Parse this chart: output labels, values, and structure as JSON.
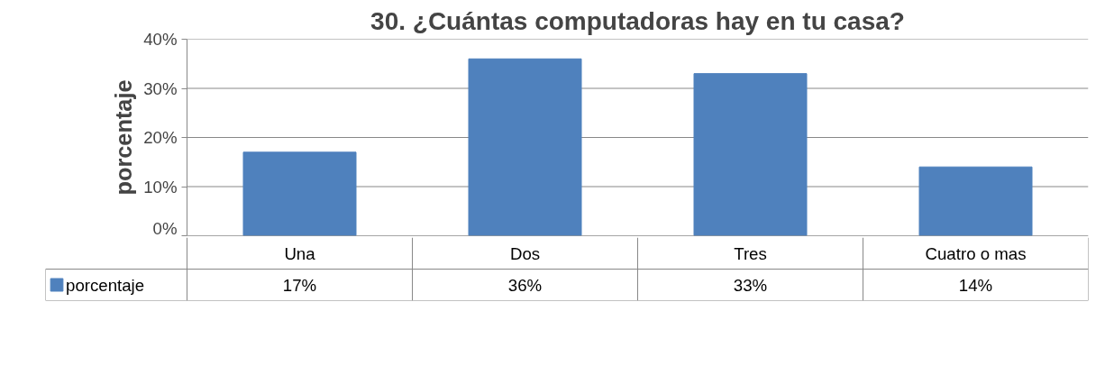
{
  "chart_data": {
    "type": "bar",
    "title": "30. ¿Cuántas computadoras hay en tu casa?",
    "ylabel": "porcentaje",
    "categories": [
      "Una",
      "Dos",
      "Tres",
      "Cuatro o mas"
    ],
    "series": [
      {
        "name": "porcentaje",
        "color": "#4f81bd",
        "values": [
          17,
          36,
          33,
          14
        ]
      }
    ],
    "value_labels": [
      "17%",
      "36%",
      "33%",
      "14%"
    ],
    "ylim": [
      0,
      40
    ],
    "yticks": [
      {
        "value": 0,
        "label": "0%"
      },
      {
        "value": 10,
        "label": "10%"
      },
      {
        "value": 20,
        "label": "20%"
      },
      {
        "value": 30,
        "label": "30%"
      },
      {
        "value": 40,
        "label": "40%"
      }
    ],
    "grid": "y",
    "legend": "bottom left"
  }
}
